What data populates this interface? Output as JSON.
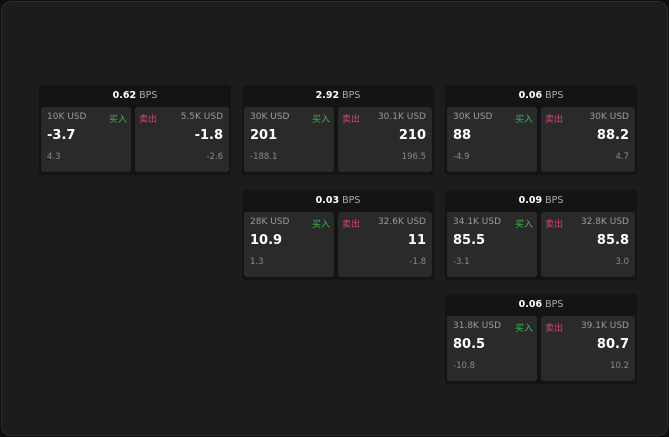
{
  "labels": {
    "buy": "买入",
    "sell": "卖出",
    "unit": "BPS"
  },
  "colors": {
    "buy": "#3fb950",
    "sell": "#e0407a"
  },
  "cards": [
    {
      "row": 0,
      "col": 0,
      "spread": "0.62",
      "buy": {
        "size": "10K USD",
        "price": "-3.7",
        "change": "4.3"
      },
      "sell": {
        "size": "5.5K USD",
        "price": "-1.8",
        "change": "-2.6"
      }
    },
    {
      "row": 0,
      "col": 1,
      "spread": "2.92",
      "buy": {
        "size": "30K USD",
        "price": "201",
        "change": "-188.1"
      },
      "sell": {
        "size": "30.1K USD",
        "price": "210",
        "change": "196.5"
      }
    },
    {
      "row": 0,
      "col": 2,
      "spread": "0.06",
      "buy": {
        "size": "30K USD",
        "price": "88",
        "change": "-4.9"
      },
      "sell": {
        "size": "30K USD",
        "price": "88.2",
        "change": "4.7"
      }
    },
    {
      "row": 1,
      "col": 1,
      "spread": "0.03",
      "buy": {
        "size": "28K USD",
        "price": "10.9",
        "change": "1.3"
      },
      "sell": {
        "size": "32.6K USD",
        "price": "11",
        "change": "-1.8"
      }
    },
    {
      "row": 1,
      "col": 2,
      "spread": "0.09",
      "buy": {
        "size": "34.1K USD",
        "price": "85.5",
        "change": "-3.1"
      },
      "sell": {
        "size": "32.8K USD",
        "price": "85.8",
        "change": "3.0"
      }
    },
    {
      "row": 2,
      "col": 2,
      "spread": "0.06",
      "buy": {
        "size": "31.8K USD",
        "price": "80.5",
        "change": "-10.8"
      },
      "sell": {
        "size": "39.1K USD",
        "price": "80.7",
        "change": "10.2"
      }
    }
  ]
}
